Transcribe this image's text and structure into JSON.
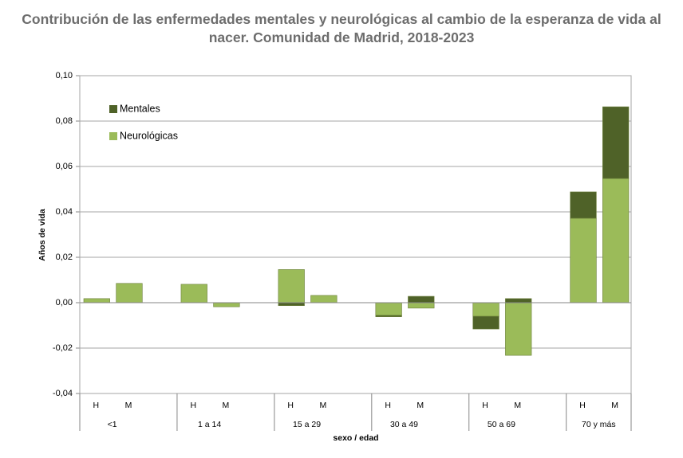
{
  "chart_data": {
    "type": "stacked-bar",
    "title": "Contribución de las enfermedades mentales y neurológicas al cambio de la esperanza de vida al nacer. Comunidad de Madrid, 2018-2023",
    "x_label": "sexo / edad",
    "y_label": "Años de vida",
    "groups": [
      "<1",
      "1 a 14",
      "15 a 29",
      "30 a 49",
      "50 a 69",
      "70 y más"
    ],
    "categories": [
      "H",
      "M",
      "H",
      "M",
      "H",
      "M",
      "H",
      "M",
      "H",
      "M",
      "H",
      "M"
    ],
    "series": [
      {
        "name": "Neurológicas",
        "color": "#9bbb59",
        "values": [
          0.0018,
          0.0085,
          0.0081,
          -0.0018,
          0.0146,
          0.0032,
          -0.0056,
          -0.0024,
          -0.006,
          -0.0232,
          0.0372,
          0.0547
        ]
      },
      {
        "name": "Mentales",
        "color": "#4f6228",
        "values": [
          0,
          0,
          0,
          0,
          -0.0013,
          0,
          -0.0006,
          0.0028,
          -0.0056,
          0.0018,
          0.0116,
          0.0316
        ]
      }
    ],
    "ylim": [
      -0.04,
      0.1
    ],
    "yticks": [
      {
        "value": -0.04,
        "label": "-0,04"
      },
      {
        "value": -0.02,
        "label": "-0,02"
      },
      {
        "value": 0,
        "label": "0,00"
      },
      {
        "value": 0.02,
        "label": "0,02"
      },
      {
        "value": 0.04,
        "label": "0,04"
      },
      {
        "value": 0.06,
        "label": "0,06"
      },
      {
        "value": 0.08,
        "label": "0,08"
      },
      {
        "value": 0.1,
        "label": "0,10"
      }
    ],
    "grid": true,
    "legend": "upper-left"
  }
}
